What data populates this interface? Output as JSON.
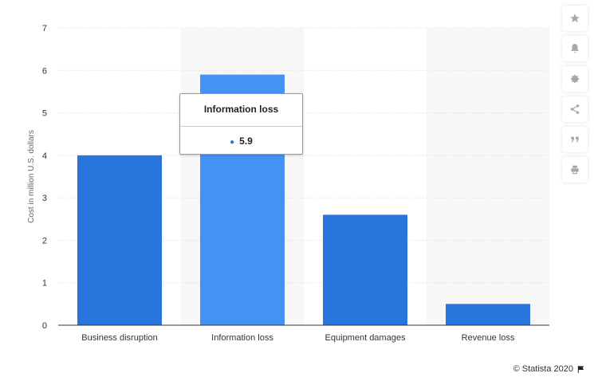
{
  "chart_data": {
    "type": "bar",
    "categories": [
      "Business disruption",
      "Information loss",
      "Equipment damages",
      "Revenue loss"
    ],
    "values": [
      4.0,
      5.9,
      2.6,
      0.5
    ],
    "title": "",
    "xlabel": "",
    "ylabel": "Cost in million U.S. dollars",
    "ylim": [
      0,
      7
    ],
    "yticks": [
      0,
      1,
      2,
      3,
      4,
      5,
      6,
      7
    ],
    "grid": "horizontal dotted",
    "highlighted_category": "Information loss",
    "colors": {
      "bar": "#2876dd",
      "bar_highlight": "#4592f5",
      "hover_band": "#f7f7f7",
      "grid": "#d9d9d9",
      "axis": "#333333"
    }
  },
  "tooltip": {
    "title": "Information loss",
    "value": "5.9"
  },
  "toolbar": [
    {
      "name": "favorite",
      "icon": "star-icon"
    },
    {
      "name": "notification",
      "icon": "bell-icon"
    },
    {
      "name": "settings",
      "icon": "gear-icon"
    },
    {
      "name": "share",
      "icon": "share-icon"
    },
    {
      "name": "cite",
      "icon": "quote-icon"
    },
    {
      "name": "print",
      "icon": "print-icon"
    }
  ],
  "credit": {
    "text": "© Statista 2020",
    "icon": "flag-icon"
  }
}
